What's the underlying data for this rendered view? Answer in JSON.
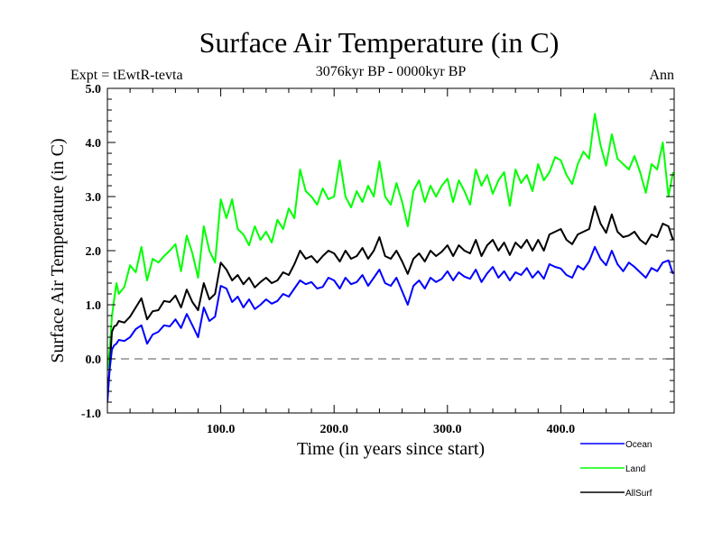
{
  "chart_data": {
    "type": "line",
    "title": "Surface Air Temperature (in C)",
    "subtitle": "3076kyr BP - 0000kyr BP",
    "experiment_label": "Expt = tEwtR-tevta",
    "season_label": "Ann",
    "xlabel": "Time (in years since start)",
    "ylabel": "Surface Air Temperature (in C)",
    "xlim": [
      0,
      500
    ],
    "ylim": [
      -1.0,
      5.0
    ],
    "x_major_ticks": [
      100,
      200,
      300,
      400
    ],
    "x_tick_labels": [
      "100.0",
      "200.0",
      "300.0",
      "400.0"
    ],
    "x_minor_step": 20,
    "y_major_ticks": [
      -1.0,
      0.0,
      1.0,
      2.0,
      3.0,
      4.0,
      5.0
    ],
    "y_tick_labels": [
      "-1.0",
      "0.0",
      "1.0",
      "2.0",
      "3.0",
      "4.0",
      "5.0"
    ],
    "y_minor_step": 0.2,
    "reference_line": {
      "y": 0.0,
      "style": "dashed",
      "color": "#555555"
    },
    "grid": false,
    "legend_position": "bottom-right-outside",
    "x": [
      0,
      2,
      4,
      6,
      8,
      10,
      15,
      20,
      25,
      30,
      35,
      40,
      45,
      50,
      55,
      60,
      65,
      70,
      75,
      80,
      85,
      90,
      95,
      100,
      105,
      110,
      115,
      120,
      125,
      130,
      135,
      140,
      145,
      150,
      155,
      160,
      165,
      170,
      175,
      180,
      185,
      190,
      195,
      200,
      205,
      210,
      215,
      220,
      225,
      230,
      235,
      240,
      245,
      250,
      255,
      260,
      265,
      270,
      275,
      280,
      285,
      290,
      295,
      300,
      305,
      310,
      315,
      320,
      325,
      330,
      335,
      340,
      345,
      350,
      355,
      360,
      365,
      370,
      375,
      380,
      385,
      390,
      395,
      400,
      405,
      410,
      415,
      420,
      425,
      430,
      435,
      440,
      445,
      450,
      455,
      460,
      465,
      470,
      475,
      480,
      485,
      490,
      495,
      499
    ],
    "series": [
      {
        "name": "Ocean",
        "color": "#0000ff",
        "values": [
          -0.8,
          -0.2,
          0.17,
          0.25,
          0.28,
          0.35,
          0.33,
          0.4,
          0.55,
          0.62,
          0.28,
          0.45,
          0.5,
          0.62,
          0.6,
          0.73,
          0.57,
          0.83,
          0.62,
          0.4,
          0.95,
          0.7,
          0.78,
          1.35,
          1.3,
          1.05,
          1.15,
          0.95,
          1.1,
          0.92,
          1.0,
          1.1,
          1.02,
          1.07,
          1.2,
          1.15,
          1.3,
          1.45,
          1.38,
          1.42,
          1.3,
          1.33,
          1.5,
          1.45,
          1.3,
          1.5,
          1.38,
          1.42,
          1.55,
          1.35,
          1.5,
          1.65,
          1.4,
          1.35,
          1.5,
          1.25,
          1.0,
          1.35,
          1.45,
          1.3,
          1.5,
          1.42,
          1.48,
          1.62,
          1.45,
          1.6,
          1.52,
          1.48,
          1.65,
          1.42,
          1.58,
          1.7,
          1.5,
          1.62,
          1.45,
          1.6,
          1.55,
          1.68,
          1.5,
          1.62,
          1.48,
          1.75,
          1.7,
          1.67,
          1.55,
          1.5,
          1.72,
          1.65,
          1.8,
          2.07,
          1.85,
          1.73,
          2.0,
          1.75,
          1.62,
          1.78,
          1.7,
          1.6,
          1.5,
          1.68,
          1.62,
          1.78,
          1.82,
          1.57
        ]
      },
      {
        "name": "Land",
        "color": "#00ff00",
        "values": [
          -0.2,
          0.17,
          0.78,
          1.1,
          1.4,
          1.2,
          1.33,
          1.73,
          1.6,
          2.07,
          1.45,
          1.85,
          1.78,
          1.9,
          2.0,
          2.12,
          1.62,
          2.28,
          1.95,
          1.5,
          2.45,
          2.0,
          1.78,
          2.95,
          2.6,
          2.95,
          2.4,
          2.3,
          2.1,
          2.45,
          2.2,
          2.35,
          2.15,
          2.57,
          2.4,
          2.78,
          2.6,
          3.5,
          3.1,
          3.0,
          2.85,
          3.15,
          2.95,
          3.0,
          3.67,
          3.0,
          2.8,
          3.1,
          2.9,
          3.2,
          3.0,
          3.65,
          3.0,
          2.85,
          3.25,
          2.9,
          2.45,
          3.1,
          3.3,
          2.9,
          3.2,
          3.0,
          3.2,
          3.33,
          2.9,
          3.3,
          3.1,
          2.85,
          3.5,
          3.2,
          3.4,
          3.05,
          3.3,
          3.45,
          2.83,
          3.5,
          3.25,
          3.4,
          3.1,
          3.6,
          3.3,
          3.45,
          3.73,
          3.67,
          3.4,
          3.23,
          3.6,
          3.83,
          3.7,
          4.53,
          3.95,
          3.57,
          4.15,
          3.7,
          3.6,
          3.5,
          3.75,
          3.45,
          3.07,
          3.6,
          3.5,
          4.0,
          3.0,
          3.45
        ]
      },
      {
        "name": "AllSurf",
        "color": "#000000",
        "values": [
          -0.7,
          -0.17,
          0.5,
          0.6,
          0.62,
          0.7,
          0.67,
          0.78,
          0.95,
          1.12,
          0.73,
          0.88,
          0.9,
          1.07,
          1.05,
          1.17,
          0.95,
          1.28,
          1.05,
          0.9,
          1.4,
          1.1,
          1.2,
          1.78,
          1.65,
          1.45,
          1.55,
          1.38,
          1.5,
          1.32,
          1.42,
          1.5,
          1.4,
          1.45,
          1.6,
          1.55,
          1.75,
          2.0,
          1.85,
          1.9,
          1.78,
          1.9,
          2.0,
          1.95,
          1.8,
          2.0,
          1.85,
          1.9,
          2.05,
          1.85,
          2.0,
          2.25,
          1.9,
          1.85,
          2.0,
          1.8,
          1.57,
          1.85,
          1.95,
          1.8,
          2.0,
          1.9,
          1.98,
          2.1,
          1.9,
          2.1,
          2.0,
          1.95,
          2.2,
          1.9,
          2.1,
          2.2,
          2.0,
          2.15,
          1.92,
          2.15,
          2.05,
          2.2,
          2.0,
          2.2,
          2.0,
          2.3,
          2.35,
          2.4,
          2.2,
          2.12,
          2.3,
          2.35,
          2.4,
          2.82,
          2.5,
          2.33,
          2.67,
          2.35,
          2.25,
          2.28,
          2.35,
          2.2,
          2.12,
          2.3,
          2.25,
          2.5,
          2.45,
          2.2
        ]
      }
    ]
  }
}
